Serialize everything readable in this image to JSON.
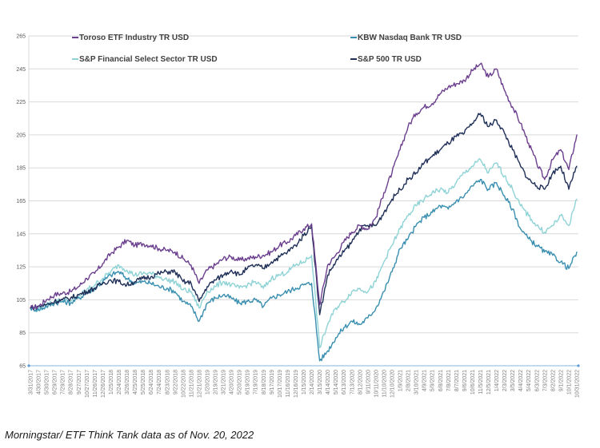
{
  "chart_data": {
    "type": "line",
    "title": "",
    "xlabel": "",
    "ylabel": "",
    "ylim": [
      65,
      265
    ],
    "yticks": [
      "265",
      "245",
      "225",
      "205",
      "185",
      "165",
      "145",
      "125",
      "105",
      "85",
      "65"
    ],
    "grid": true,
    "legend_position": "top",
    "x": [
      "3/31/2017",
      "4/30/2017",
      "5/30/2017",
      "6/29/2017",
      "7/29/2017",
      "8/28/2017",
      "9/27/2017",
      "10/27/2017",
      "11/26/2017",
      "12/26/2017",
      "1/25/2018",
      "2/24/2018",
      "3/26/2018",
      "4/25/2018",
      "5/25/2018",
      "6/24/2018",
      "7/24/2018",
      "8/23/2018",
      "9/22/2018",
      "10/22/2018",
      "11/21/2018",
      "12/21/2018",
      "1/20/2019",
      "2/19/2019",
      "3/21/2019",
      "4/20/2019",
      "5/20/2019",
      "6/19/2019",
      "7/19/2019",
      "8/18/2019",
      "9/17/2019",
      "10/17/2019",
      "11/16/2019",
      "12/16/2019",
      "1/15/2020",
      "2/14/2020",
      "3/15/2020",
      "4/14/2020",
      "5/14/2020",
      "6/13/2020",
      "7/13/2020",
      "8/12/2020",
      "9/11/2020",
      "10/11/2020",
      "11/10/2020",
      "12/10/2020",
      "1/9/2021",
      "2/8/2021",
      "3/10/2021",
      "4/9/2021",
      "5/9/2021",
      "6/8/2021",
      "7/8/2021",
      "8/7/2021",
      "9/6/2021",
      "10/6/2021",
      "11/5/2021",
      "12/5/2021",
      "1/4/2022",
      "2/3/2022",
      "3/5/2022",
      "4/4/2022",
      "5/4/2022",
      "6/3/2022",
      "7/3/2022",
      "8/2/2022",
      "9/1/2022",
      "10/1/2022",
      "10/31/2022"
    ],
    "series": [
      {
        "name": "Toroso ETF Industry TR USD",
        "color": "#6b3f8e",
        "values": [
          100,
          101,
          105,
          108,
          109,
          110,
          113,
          118,
          121,
          127,
          133,
          137,
          141,
          138,
          139,
          138,
          136,
          135,
          134,
          130,
          126,
          115,
          123,
          126,
          130,
          131,
          129,
          130,
          131,
          132,
          134,
          138,
          140,
          144,
          148,
          151,
          102,
          126,
          132,
          140,
          146,
          150,
          148,
          155,
          170,
          182,
          196,
          210,
          218,
          222,
          224,
          230,
          234,
          236,
          238,
          244,
          248,
          240,
          245,
          232,
          222,
          212,
          200,
          188,
          178,
          190,
          196,
          184,
          205
        ]
      },
      {
        "name": "KBW Nasdaq Bank TR USD",
        "color": "#3a8fb0",
        "values": [
          100,
          99,
          101,
          103,
          104,
          103,
          106,
          109,
          112,
          116,
          120,
          122,
          118,
          115,
          116,
          115,
          113,
          112,
          110,
          104,
          101,
          92,
          103,
          106,
          108,
          106,
          103,
          104,
          105,
          101,
          106,
          108,
          110,
          112,
          114,
          115,
          68,
          74,
          82,
          88,
          92,
          90,
          94,
          100,
          110,
          122,
          136,
          142,
          150,
          155,
          158,
          162,
          160,
          165,
          168,
          174,
          178,
          172,
          176,
          168,
          160,
          148,
          142,
          138,
          134,
          132,
          128,
          124,
          134
        ]
      },
      {
        "name": "S&P Financial Select Sector TR USD",
        "color": "#8fd3d6",
        "values": [
          100,
          99,
          102,
          104,
          105,
          104,
          107,
          111,
          114,
          118,
          122,
          126,
          123,
          120,
          121,
          121,
          119,
          117,
          116,
          111,
          110,
          100,
          110,
          113,
          116,
          114,
          112,
          114,
          116,
          112,
          118,
          120,
          122,
          126,
          128,
          132,
          76,
          90,
          100,
          104,
          110,
          112,
          110,
          116,
          128,
          138,
          148,
          156,
          162,
          166,
          170,
          172,
          170,
          176,
          182,
          186,
          190,
          182,
          188,
          180,
          172,
          162,
          156,
          150,
          146,
          150,
          156,
          150,
          166
        ]
      },
      {
        "name": "S&P 500 TR USD",
        "color": "#1f2f57",
        "values": [
          100,
          101,
          102,
          104,
          105,
          106,
          108,
          110,
          112,
          115,
          117,
          116,
          114,
          116,
          118,
          119,
          121,
          122,
          122,
          116,
          115,
          104,
          113,
          117,
          120,
          123,
          120,
          124,
          126,
          124,
          128,
          131,
          134,
          138,
          144,
          150,
          96,
          120,
          128,
          134,
          140,
          148,
          150,
          150,
          158,
          166,
          172,
          178,
          182,
          188,
          192,
          196,
          200,
          204,
          206,
          212,
          218,
          210,
          214,
          206,
          196,
          186,
          178,
          174,
          172,
          182,
          186,
          172,
          186
        ]
      }
    ]
  },
  "caption": "Morningstar/ ETF Think Tank data as of Nov. 20, 2022"
}
